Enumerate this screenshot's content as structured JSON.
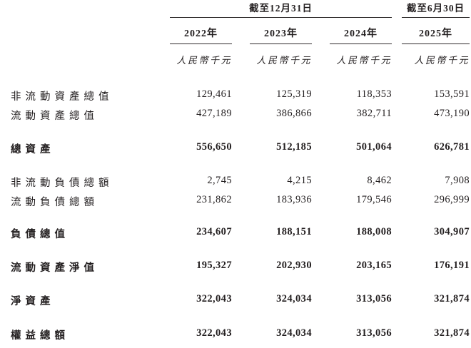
{
  "table": {
    "date_groups": [
      {
        "title": "截至12月31日"
      },
      {
        "title": "截至6月30日"
      }
    ],
    "columns": [
      {
        "year": "2022年",
        "unit": "人民幣千元"
      },
      {
        "year": "2023年",
        "unit": "人民幣千元"
      },
      {
        "year": "2024年",
        "unit": "人民幣千元"
      },
      {
        "year": "2025年",
        "unit": "人民幣千元"
      }
    ],
    "rows": [
      {
        "label": "非流動資產總值",
        "bold": false,
        "values": [
          "129,461",
          "125,319",
          "118,353",
          "153,591"
        ]
      },
      {
        "label": "流動資產總值",
        "bold": false,
        "values": [
          "427,189",
          "386,866",
          "382,711",
          "473,190"
        ]
      },
      {
        "label": "總資產",
        "bold": true,
        "values": [
          "556,650",
          "512,185",
          "501,064",
          "626,781"
        ]
      },
      {
        "label": "非流動負債總額",
        "bold": false,
        "values": [
          "2,745",
          "4,215",
          "8,462",
          "7,908"
        ]
      },
      {
        "label": "流動負債總額",
        "bold": false,
        "values": [
          "231,862",
          "183,936",
          "179,546",
          "296,999"
        ]
      },
      {
        "label": "負債總值",
        "bold": true,
        "values": [
          "234,607",
          "188,151",
          "188,008",
          "304,907"
        ]
      },
      {
        "label": "流動資產淨值",
        "bold": true,
        "values": [
          "195,327",
          "202,930",
          "203,165",
          "176,191"
        ]
      },
      {
        "label": "淨資產",
        "bold": true,
        "values": [
          "322,043",
          "324,034",
          "313,056",
          "321,874"
        ]
      },
      {
        "label": "權益總額",
        "bold": true,
        "values": [
          "322,043",
          "324,034",
          "313,056",
          "321,874"
        ]
      }
    ]
  },
  "colors": {
    "background": "#ffffff",
    "text": "#231f20",
    "rule": "#2f2b2c"
  }
}
